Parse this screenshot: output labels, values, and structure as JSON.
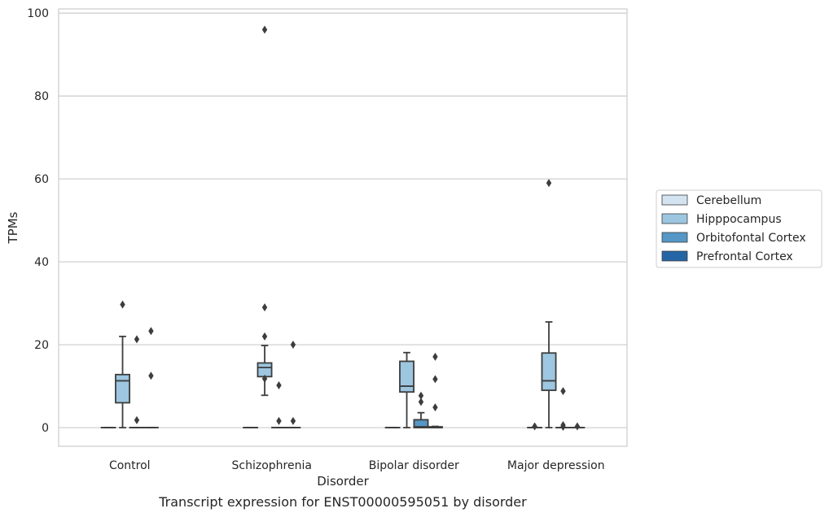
{
  "chart_data": {
    "type": "box",
    "title": "",
    "caption": "Transcript expression for ENST00000595051 by disorder",
    "xlabel": "Disorder",
    "ylabel": "TPMs",
    "ylim": [
      -4.5,
      101
    ],
    "yticks": [
      0,
      20,
      40,
      60,
      80,
      100
    ],
    "grid": "horizontal",
    "legend_position": "right",
    "categories": [
      "Control",
      "Schizophrenia",
      "Bipolar disorder",
      "Major depression"
    ],
    "series": [
      {
        "name": "Cerebellum",
        "color": "#d3e3f1",
        "boxes": [
          {
            "q1": 0,
            "median": 0,
            "q3": 0,
            "whisker_low": 0,
            "whisker_high": 0,
            "outliers": []
          },
          {
            "q1": 0,
            "median": 0,
            "q3": 0,
            "whisker_low": 0,
            "whisker_high": 0,
            "outliers": []
          },
          {
            "q1": 0,
            "median": 0,
            "q3": 0,
            "whisker_low": 0,
            "whisker_high": 0,
            "outliers": []
          },
          {
            "q1": 0,
            "median": 0,
            "q3": 0,
            "whisker_low": 0,
            "whisker_high": 0,
            "outliers": [
              0.3
            ]
          }
        ]
      },
      {
        "name": "Hipppocampus",
        "color": "#9dc6e0",
        "boxes": [
          {
            "q1": 6,
            "median": 11.3,
            "q3": 12.8,
            "whisker_low": 0,
            "whisker_high": 22,
            "outliers": [
              29.7
            ]
          },
          {
            "q1": 12.3,
            "median": 14.5,
            "q3": 15.6,
            "whisker_low": 7.8,
            "whisker_high": 19.8,
            "outliers": [
              96,
              29,
              22,
              11.8
            ]
          },
          {
            "q1": 8.6,
            "median": 10,
            "q3": 16,
            "whisker_low": 0,
            "whisker_high": 18.1,
            "outliers": []
          },
          {
            "q1": 9,
            "median": 11.3,
            "q3": 18,
            "whisker_low": 0,
            "whisker_high": 25.5,
            "outliers": [
              59
            ]
          }
        ]
      },
      {
        "name": "Orbitofontal Cortex",
        "color": "#5597c6",
        "boxes": [
          {
            "q1": 0,
            "median": 0,
            "q3": 0,
            "whisker_low": 0,
            "whisker_high": 0,
            "outliers": [
              21.3,
              1.8
            ]
          },
          {
            "q1": 0,
            "median": 0,
            "q3": 0,
            "whisker_low": 0,
            "whisker_high": 0,
            "outliers": [
              10.2,
              1.6
            ]
          },
          {
            "q1": 0,
            "median": 0.2,
            "q3": 1.9,
            "whisker_low": 0,
            "whisker_high": 3.6,
            "outliers": [
              7.7,
              6.2
            ]
          },
          {
            "q1": 0,
            "median": 0,
            "q3": 0,
            "whisker_low": 0,
            "whisker_high": 0,
            "outliers": [
              8.8,
              0.6,
              0.2
            ]
          }
        ]
      },
      {
        "name": "Prefrontal Cortex",
        "color": "#2465a6",
        "boxes": [
          {
            "q1": 0,
            "median": 0,
            "q3": 0,
            "whisker_low": 0,
            "whisker_high": 0,
            "outliers": [
              23.3,
              12.5
            ]
          },
          {
            "q1": 0,
            "median": 0,
            "q3": 0,
            "whisker_low": 0,
            "whisker_high": 0,
            "outliers": [
              20,
              1.6
            ]
          },
          {
            "q1": 0,
            "median": 0,
            "q3": 0.2,
            "whisker_low": 0,
            "whisker_high": 0.3,
            "outliers": [
              17.1,
              11.7,
              4.9
            ]
          },
          {
            "q1": 0,
            "median": 0,
            "q3": 0,
            "whisker_low": 0,
            "whisker_high": 0,
            "outliers": [
              0.3
            ]
          }
        ]
      }
    ]
  }
}
